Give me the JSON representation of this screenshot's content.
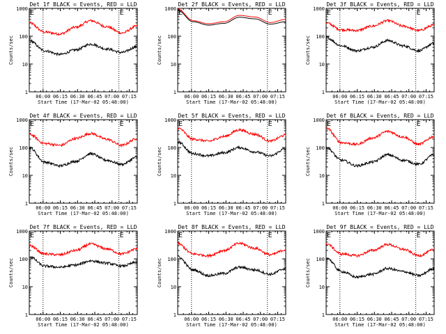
{
  "chart_data": {
    "type": "line",
    "layout": "3x3 grid",
    "shared": {
      "xlabel": "Start Time (17-Mar-02 05:48:00)",
      "ylabel": "Counts/sec",
      "x_tick_labels": [
        "06:00",
        "06:15",
        "06:30",
        "06:45",
        "07:00",
        "07:15"
      ],
      "x_tick_minutes": [
        12,
        27,
        42,
        57,
        72,
        87
      ],
      "xlim_minutes": [
        0,
        94
      ],
      "y_scale": "log",
      "ylim": [
        1,
        1000
      ],
      "y_tick_labels": [
        "1",
        "10",
        "100",
        "1000"
      ],
      "y_tick_values": [
        1,
        10,
        100,
        1000
      ],
      "event_marker_label": "E",
      "event_marker_minutes": [
        0,
        78
      ],
      "dotted_lines_minutes": [
        12,
        78
      ],
      "series_names": [
        "Events",
        "LLD"
      ],
      "series_colors": {
        "Events": "#000000",
        "LLD": "#ff0000"
      }
    },
    "panels": [
      {
        "title": "Det 1f BLACK = Events, RED = LLD",
        "detector": "1f",
        "series": [
          {
            "name": "Events",
            "values": [
              70,
              30,
              22,
              32,
              52,
              35,
              26,
              42
            ]
          },
          {
            "name": "LLD",
            "values": [
              300,
              140,
              120,
              210,
              360,
              220,
              130,
              230
            ]
          }
        ]
      },
      {
        "title": "Det 2f BLACK = Events, RED = LLD",
        "detector": "2f",
        "series": [
          {
            "name": "Events",
            "values": [
              850,
              330,
              250,
              290,
              480,
              420,
              270,
              330
            ]
          },
          {
            "name": "LLD",
            "values": [
              950,
              360,
              280,
              330,
              560,
              490,
              310,
              400
            ]
          }
        ]
      },
      {
        "title": "Det 3f BLACK = Events, RED = LLD",
        "detector": "3f",
        "series": [
          {
            "name": "Events",
            "values": [
              90,
              45,
              30,
              40,
              70,
              45,
              30,
              55
            ]
          },
          {
            "name": "LLD",
            "values": [
              300,
              170,
              160,
              230,
              360,
              230,
              160,
              250
            ]
          }
        ]
      },
      {
        "title": "Det 4f BLACK = Events, RED = LLD",
        "detector": "4f",
        "series": [
          {
            "name": "Events",
            "values": [
              100,
              30,
              22,
              32,
              60,
              35,
              25,
              45
            ]
          },
          {
            "name": "LLD",
            "values": [
              300,
              140,
              120,
              210,
              320,
              200,
              120,
              210
            ]
          }
        ]
      },
      {
        "title": "Det 5f BLACK = Events, RED = LLD",
        "detector": "5f",
        "series": [
          {
            "name": "Events",
            "values": [
              160,
              60,
              50,
              65,
              100,
              70,
              50,
              90
            ]
          },
          {
            "name": "LLD",
            "values": [
              500,
              200,
              170,
              250,
              430,
              300,
              170,
              280
            ]
          }
        ]
      },
      {
        "title": "Det 6f BLACK = Events, RED = LLD",
        "detector": "6f",
        "series": [
          {
            "name": "Events",
            "values": [
              100,
              35,
              22,
              30,
              55,
              35,
              25,
              55
            ]
          },
          {
            "name": "LLD",
            "values": [
              500,
              150,
              130,
              220,
              380,
              240,
              130,
              250
            ]
          }
        ]
      },
      {
        "title": "Det 7f BLACK = Events, RED = LLD",
        "detector": "7f",
        "series": [
          {
            "name": "Events",
            "values": [
              120,
              55,
              50,
              60,
              85,
              70,
              55,
              75
            ]
          },
          {
            "name": "LLD",
            "values": [
              300,
              150,
              140,
              200,
              340,
              230,
              150,
              230
            ]
          }
        ]
      },
      {
        "title": "Det 8f BLACK = Events, RED = LLD",
        "detector": "8f",
        "series": [
          {
            "name": "Events",
            "values": [
              120,
              40,
              25,
              30,
              50,
              40,
              28,
              45
            ]
          },
          {
            "name": "LLD",
            "values": [
              350,
              150,
              130,
              200,
              360,
              240,
              140,
              210
            ]
          }
        ]
      },
      {
        "title": "Det 9f BLACK = Events, RED = LLD",
        "detector": "9f",
        "series": [
          {
            "name": "Events",
            "values": [
              110,
              35,
              22,
              28,
              45,
              35,
              25,
              45
            ]
          },
          {
            "name": "LLD",
            "values": [
              350,
              150,
              130,
              200,
              330,
              220,
              130,
              210
            ]
          }
        ]
      }
    ]
  }
}
